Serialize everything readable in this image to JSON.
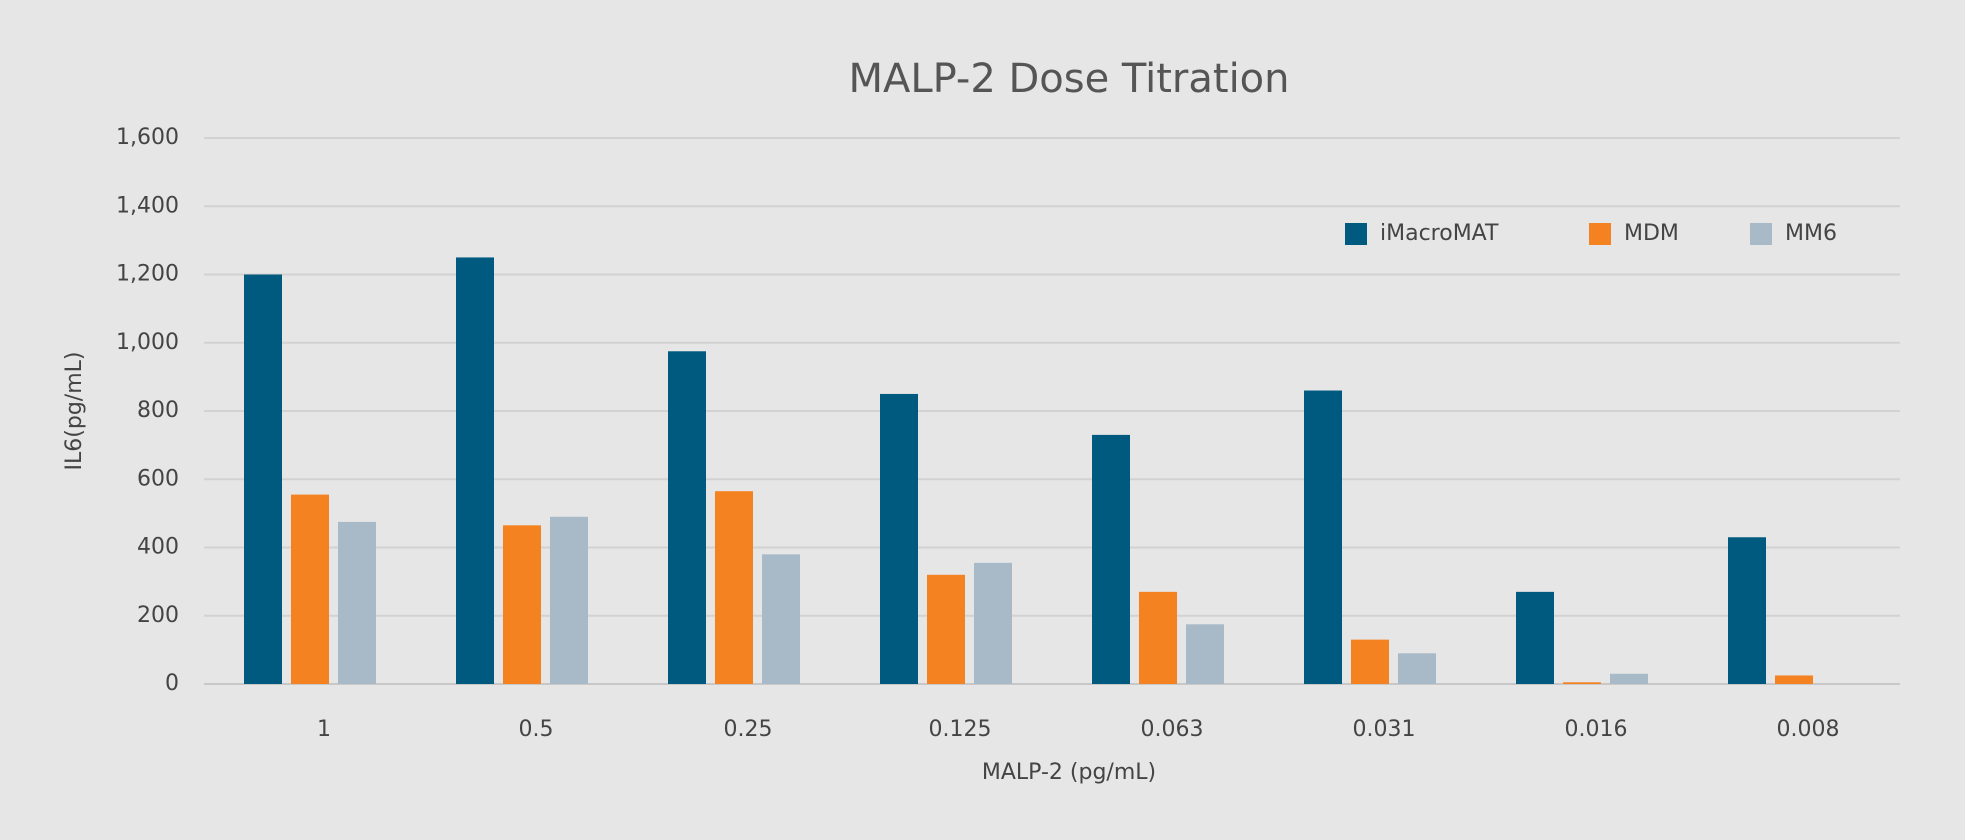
{
  "chart_data": {
    "type": "bar",
    "title": "MALP-2 Dose Titration",
    "x_label": "MALP-2 (pg/mL)",
    "y_label": "IL6(pg/mL)",
    "categories": [
      "1",
      "0.5",
      "0.25",
      "0.125",
      "0.063",
      "0.031",
      "0.016",
      "0.008"
    ],
    "series": [
      {
        "name": "iMacroMAT",
        "color": "#005a80",
        "values": [
          1200,
          1250,
          975,
          850,
          730,
          860,
          270,
          430
        ]
      },
      {
        "name": "MDM",
        "color": "#f58220",
        "values": [
          555,
          465,
          565,
          320,
          270,
          130,
          5,
          25
        ]
      },
      {
        "name": "MM6",
        "color": "#a8bac7",
        "values": [
          475,
          490,
          380,
          355,
          175,
          90,
          30,
          null
        ]
      }
    ],
    "ylim": [
      0,
      1600
    ],
    "yticks": [
      0,
      200,
      400,
      600,
      800,
      {
        "value": 1000,
        "label": "1,000"
      },
      {
        "value": 1200,
        "label": "1,200"
      },
      {
        "value": 1400,
        "label": "1,400"
      },
      {
        "value": 1600,
        "label": "1,600"
      }
    ],
    "grid": true,
    "legend": "top-right"
  }
}
